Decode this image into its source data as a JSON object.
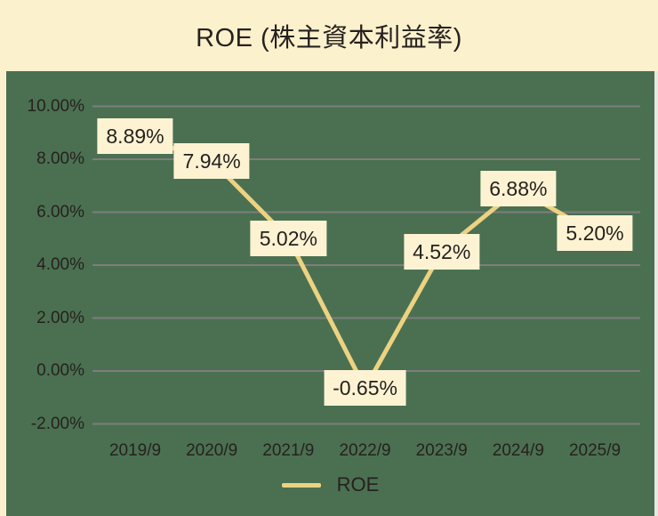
{
  "title": "ROE (株主資本利益率)",
  "legend": {
    "label": "ROE"
  },
  "colors": {
    "background": "#FCF1CD",
    "panel": "#4A7051",
    "gridline": "#7E7E7E",
    "line": "#ECD281",
    "label_box_bg": "#FDF3D3",
    "text": "#26211E",
    "right_edge_strip": "#E9E8E0"
  },
  "chart_data": {
    "type": "line",
    "title": "ROE (株主資本利益率)",
    "x": [
      "2019/9",
      "2020/9",
      "2021/9",
      "2022/9",
      "2023/9",
      "2024/9",
      "2025/9"
    ],
    "series": [
      {
        "name": "ROE",
        "values": [
          8.89,
          7.94,
          5.02,
          -0.65,
          4.52,
          6.88,
          5.2
        ]
      }
    ],
    "point_labels": [
      "8.89%",
      "7.94%",
      "5.02%",
      "-0.65%",
      "4.52%",
      "6.88%",
      "5.20%"
    ],
    "yticks": [
      {
        "value": 10,
        "label": "10.00%"
      },
      {
        "value": 8,
        "label": "8.00%"
      },
      {
        "value": 6,
        "label": "6.00%"
      },
      {
        "value": 4,
        "label": "4.00%"
      },
      {
        "value": 2,
        "label": "2.00%"
      },
      {
        "value": 0,
        "label": "0.00%"
      },
      {
        "value": -2,
        "label": "-2.00%"
      }
    ],
    "ylim": [
      -2,
      10
    ],
    "grid": true,
    "legend_position": "bottom"
  }
}
